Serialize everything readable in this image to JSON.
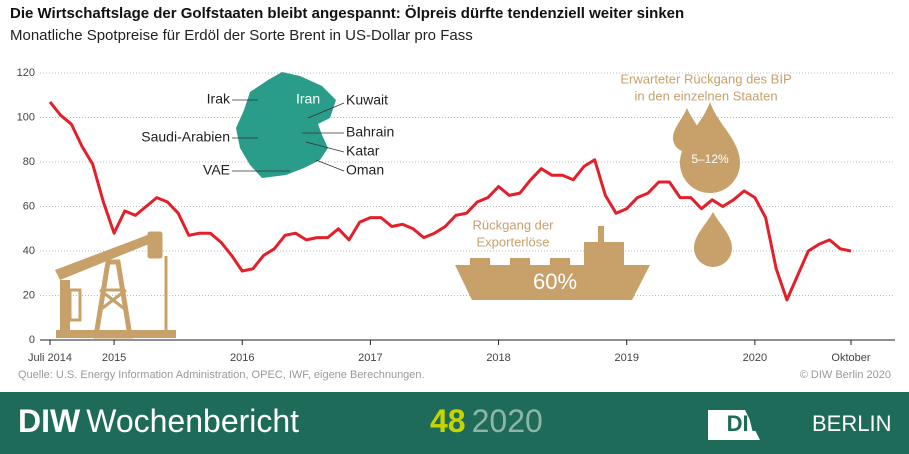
{
  "chart_data": {
    "type": "line",
    "title": "Die Wirtschaftslage der Golfstaaten bleibt angespannt: Ölpreis dürfte tendenziell weiter sinken",
    "subtitle": "Monatliche Spotpreise für Erdöl der Sorte Brent in US-Dollar pro Fass",
    "categories": [
      "Juli 2014",
      null,
      null,
      null,
      null,
      null,
      "2015",
      null,
      null,
      null,
      null,
      null,
      null,
      null,
      null,
      null,
      null,
      null,
      "2016",
      null,
      null,
      null,
      null,
      null,
      null,
      null,
      null,
      null,
      null,
      null,
      "2017",
      null,
      null,
      null,
      null,
      null,
      null,
      null,
      null,
      null,
      null,
      null,
      "2018",
      null,
      null,
      null,
      null,
      null,
      null,
      null,
      null,
      null,
      null,
      null,
      "2019",
      null,
      null,
      null,
      null,
      null,
      null,
      null,
      null,
      null,
      null,
      null,
      "2020",
      null,
      null,
      null,
      null,
      null,
      null,
      null,
      null,
      "Oktober"
    ],
    "values": [
      107,
      101,
      97,
      87,
      79,
      62,
      48,
      58,
      56,
      60,
      64,
      62,
      57,
      47,
      48,
      48,
      44,
      38,
      31,
      32,
      38,
      41,
      47,
      48,
      45,
      46,
      46,
      50,
      45,
      53,
      55,
      55,
      51,
      52,
      50,
      46,
      48,
      51,
      56,
      57,
      62,
      64,
      69,
      65,
      66,
      72,
      77,
      74,
      74,
      72,
      78,
      81,
      65,
      57,
      59,
      64,
      66,
      71,
      71,
      64,
      64,
      59,
      63,
      60,
      63,
      67,
      64,
      55,
      32,
      18,
      29,
      40,
      43,
      45,
      41,
      40
    ],
    "color": "#e3202a",
    "ylim": [
      0,
      120
    ],
    "yticks": [
      0,
      20,
      40,
      60,
      80,
      100,
      120
    ],
    "grid": true,
    "map_labels": [
      "Irak",
      "Iran",
      "Kuwait",
      "Saudi-Arabien",
      "Bahrain",
      "Katar",
      "VAE",
      "Oman"
    ],
    "gdp_note": [
      "Erwarteter Rückgang des BIP",
      "in den einzelnen Staaten"
    ],
    "gdp_value": "5–12%",
    "export_note": [
      "Rückgang der",
      "Exporterlöse"
    ],
    "export_value": "60%",
    "source": "Quelle: U.S. Energy Information Administration, OPEC, IWF, eigene Berechnungen.",
    "copyright": "© DIW Berlin 2020"
  },
  "footer": {
    "brand": "DIW",
    "publication": "Wochenbericht",
    "issue": "48",
    "year": "2020",
    "logo_left": "DIW",
    "logo_right": "BERLIN"
  }
}
